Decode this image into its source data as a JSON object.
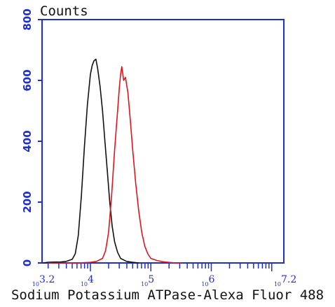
{
  "chart_data": {
    "type": "line",
    "title": "Counts",
    "xlabel": "Sodium Potassium ATPase-Alexa Fluor 488",
    "ylabel": "",
    "x_scale": "log",
    "xlim_log10": [
      3.2,
      7.2
    ],
    "ylim": [
      0,
      800
    ],
    "y_ticks": [
      0,
      200,
      400,
      600,
      800
    ],
    "x_tick_labels": [
      {
        "base": "10",
        "exp": "3.2",
        "log10": 3.2
      },
      {
        "base": "10",
        "exp": "4",
        "log10": 4
      },
      {
        "base": "10",
        "exp": "5",
        "log10": 5
      },
      {
        "base": "10",
        "exp": "6",
        "log10": 6
      },
      {
        "base": "10",
        "exp": "7.2",
        "log10": 7.2
      }
    ],
    "grid": false,
    "axis_color": "#1f2fcf",
    "series": [
      {
        "color": "#111111",
        "points": [
          [
            3.22,
            0
          ],
          [
            3.3,
            2
          ],
          [
            3.4,
            3
          ],
          [
            3.5,
            3
          ],
          [
            3.6,
            5
          ],
          [
            3.7,
            12
          ],
          [
            3.75,
            30
          ],
          [
            3.8,
            90
          ],
          [
            3.85,
            220
          ],
          [
            3.9,
            380
          ],
          [
            3.95,
            520
          ],
          [
            4.0,
            620
          ],
          [
            4.03,
            650
          ],
          [
            4.06,
            665
          ],
          [
            4.09,
            670
          ],
          [
            4.12,
            640
          ],
          [
            4.16,
            580
          ],
          [
            4.2,
            500
          ],
          [
            4.24,
            400
          ],
          [
            4.28,
            300
          ],
          [
            4.32,
            200
          ],
          [
            4.36,
            120
          ],
          [
            4.4,
            70
          ],
          [
            4.45,
            35
          ],
          [
            4.5,
            15
          ],
          [
            4.6,
            5
          ],
          [
            4.7,
            2
          ],
          [
            4.8,
            0
          ]
        ]
      },
      {
        "color": "#e0141c",
        "points": [
          [
            3.3,
            0
          ],
          [
            3.5,
            0
          ],
          [
            3.8,
            0
          ],
          [
            4.0,
            2
          ],
          [
            4.1,
            5
          ],
          [
            4.2,
            15
          ],
          [
            4.25,
            40
          ],
          [
            4.3,
            100
          ],
          [
            4.35,
            220
          ],
          [
            4.4,
            370
          ],
          [
            4.45,
            500
          ],
          [
            4.48,
            580
          ],
          [
            4.5,
            620
          ],
          [
            4.52,
            645
          ],
          [
            4.55,
            600
          ],
          [
            4.58,
            610
          ],
          [
            4.62,
            560
          ],
          [
            4.66,
            470
          ],
          [
            4.7,
            370
          ],
          [
            4.75,
            260
          ],
          [
            4.8,
            170
          ],
          [
            4.85,
            100
          ],
          [
            4.9,
            55
          ],
          [
            4.95,
            30
          ],
          [
            5.0,
            15
          ],
          [
            5.1,
            8
          ],
          [
            5.2,
            4
          ],
          [
            5.4,
            0
          ],
          [
            5.5,
            0
          ]
        ]
      }
    ]
  }
}
